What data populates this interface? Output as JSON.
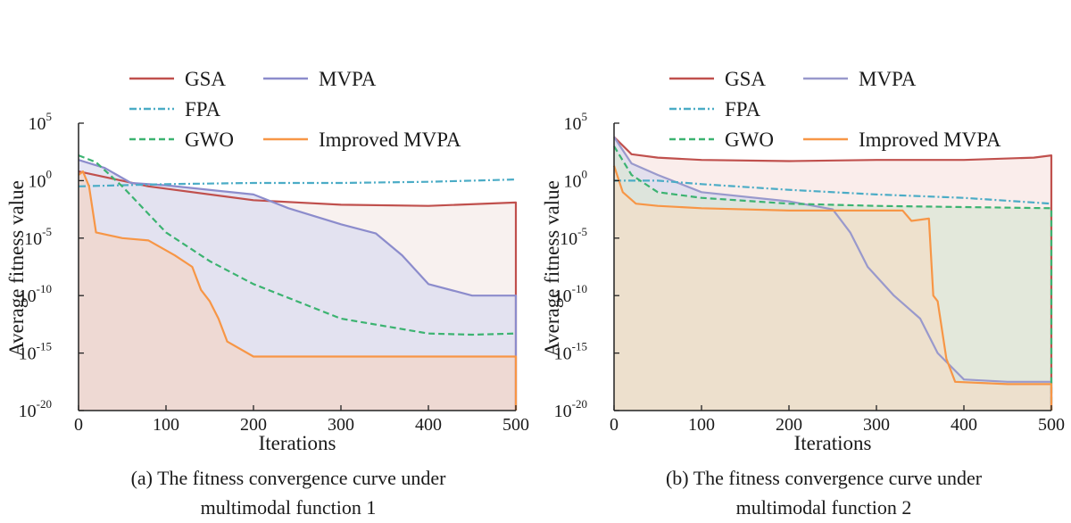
{
  "chart_data": [
    {
      "type": "line",
      "title": "(a) The fitness convergence curve under",
      "subtitle": "multimodal function 1",
      "xlabel": "Iterations",
      "ylabel": "Average fitness value",
      "yscale": "log",
      "xlim": [
        0,
        500
      ],
      "ylim_exponent": [
        -20,
        5
      ],
      "x_ticks": [
        "0",
        "100",
        "200",
        "300",
        "400",
        "500"
      ],
      "y_ticks": [
        {
          "base": "10",
          "exp": "5"
        },
        {
          "base": "10",
          "exp": "0"
        },
        {
          "base": "10",
          "exp": "-5"
        },
        {
          "base": "10",
          "exp": "-10"
        },
        {
          "base": "10",
          "exp": "-15"
        },
        {
          "base": "10",
          "exp": "-20"
        }
      ],
      "legend": [
        "GSA",
        "MVPA",
        "FPA",
        "GWO",
        "Improved MVPA"
      ],
      "legend_position": "top",
      "series": [
        {
          "name": "GSA",
          "color": "#c0504d",
          "style": "solid",
          "fill": "#f5ece9",
          "log10_points": [
            [
              0,
              0.8
            ],
            [
              80,
              -0.5
            ],
            [
              200,
              -1.7
            ],
            [
              300,
              -2.1
            ],
            [
              400,
              -2.2
            ],
            [
              500,
              -1.9
            ]
          ]
        },
        {
          "name": "MVPA",
          "color": "#8c8ccc",
          "style": "solid",
          "fill": "#dcdcf0",
          "log10_points": [
            [
              0,
              1.8
            ],
            [
              30,
              1.1
            ],
            [
              60,
              -0.2
            ],
            [
              100,
              -0.4
            ],
            [
              200,
              -1.2
            ],
            [
              240,
              -2.4
            ],
            [
              300,
              -3.8
            ],
            [
              340,
              -4.6
            ],
            [
              370,
              -6.5
            ],
            [
              400,
              -9.0
            ],
            [
              450,
              -10.0
            ],
            [
              500,
              -10.0
            ]
          ]
        },
        {
          "name": "FPA",
          "color": "#4bacc6",
          "style": "dashdot",
          "fill": "none",
          "log10_points": [
            [
              0,
              -0.5
            ],
            [
              100,
              -0.3
            ],
            [
              200,
              -0.2
            ],
            [
              300,
              -0.2
            ],
            [
              400,
              -0.1
            ],
            [
              500,
              0.1
            ]
          ]
        },
        {
          "name": "GWO",
          "color": "#3cb371",
          "style": "dashed",
          "fill": "none",
          "log10_points": [
            [
              0,
              2.2
            ],
            [
              20,
              1.6
            ],
            [
              50,
              -0.5
            ],
            [
              100,
              -4.5
            ],
            [
              150,
              -7.0
            ],
            [
              200,
              -9.0
            ],
            [
              300,
              -12.0
            ],
            [
              400,
              -13.3
            ],
            [
              450,
              -13.4
            ],
            [
              500,
              -13.3
            ]
          ]
        },
        {
          "name": "Improved MVPA",
          "color": "#f79646",
          "style": "solid",
          "fill": "#f1d6c9",
          "log10_points": [
            [
              0,
              0.5
            ],
            [
              5,
              0.8
            ],
            [
              12,
              -0.5
            ],
            [
              20,
              -4.5
            ],
            [
              50,
              -5.0
            ],
            [
              80,
              -5.2
            ],
            [
              110,
              -6.5
            ],
            [
              130,
              -7.5
            ],
            [
              140,
              -9.5
            ],
            [
              150,
              -10.5
            ],
            [
              160,
              -12.0
            ],
            [
              170,
              -14.0
            ],
            [
              200,
              -15.3
            ],
            [
              300,
              -15.3
            ],
            [
              400,
              -15.3
            ],
            [
              500,
              -15.3
            ]
          ]
        }
      ]
    },
    {
      "type": "line",
      "title": "(b) The fitness convergence curve under",
      "subtitle": "multimodal function 2",
      "xlabel": "Iterations",
      "ylabel": "Average fitness value",
      "yscale": "log",
      "xlim": [
        0,
        500
      ],
      "ylim_exponent": [
        -20,
        5
      ],
      "x_ticks": [
        "0",
        "100",
        "200",
        "300",
        "400",
        "500"
      ],
      "y_ticks": [
        {
          "base": "10",
          "exp": "5"
        },
        {
          "base": "10",
          "exp": "0"
        },
        {
          "base": "10",
          "exp": "-5"
        },
        {
          "base": "10",
          "exp": "-10"
        },
        {
          "base": "10",
          "exp": "-15"
        },
        {
          "base": "10",
          "exp": "-20"
        }
      ],
      "legend": [
        "GSA",
        "MVPA",
        "FPA",
        "GWO",
        "Improved MVPA"
      ],
      "legend_position": "top",
      "series": [
        {
          "name": "GSA",
          "color": "#c0504d",
          "style": "solid",
          "fill": "#f8e7e4",
          "log10_points": [
            [
              0,
              3.8
            ],
            [
              20,
              2.3
            ],
            [
              50,
              2.0
            ],
            [
              100,
              1.8
            ],
            [
              200,
              1.7
            ],
            [
              300,
              1.8
            ],
            [
              400,
              1.8
            ],
            [
              480,
              2.0
            ],
            [
              500,
              2.2
            ]
          ]
        },
        {
          "name": "MVPA",
          "color": "#9999cc",
          "style": "solid",
          "fill": "#d9d9ee",
          "log10_points": [
            [
              0,
              3.8
            ],
            [
              20,
              1.5
            ],
            [
              50,
              0.5
            ],
            [
              100,
              -1.0
            ],
            [
              200,
              -1.8
            ],
            [
              250,
              -2.5
            ],
            [
              270,
              -4.5
            ],
            [
              290,
              -7.5
            ],
            [
              320,
              -10.0
            ],
            [
              350,
              -12.0
            ],
            [
              370,
              -15.0
            ],
            [
              400,
              -17.3
            ],
            [
              450,
              -17.5
            ],
            [
              500,
              -17.5
            ]
          ]
        },
        {
          "name": "FPA",
          "color": "#4bacc6",
          "style": "dashdot",
          "fill": "none",
          "log10_points": [
            [
              0,
              0.0
            ],
            [
              50,
              0.0
            ],
            [
              100,
              -0.3
            ],
            [
              200,
              -0.8
            ],
            [
              300,
              -1.2
            ],
            [
              400,
              -1.5
            ],
            [
              500,
              -2.0
            ]
          ]
        },
        {
          "name": "GWO",
          "color": "#3cb371",
          "style": "dashed",
          "fill": "#dbe5d6",
          "log10_points": [
            [
              0,
              3.0
            ],
            [
              20,
              0.5
            ],
            [
              50,
              -1.0
            ],
            [
              100,
              -1.5
            ],
            [
              200,
              -2.0
            ],
            [
              300,
              -2.2
            ],
            [
              400,
              -2.3
            ],
            [
              500,
              -2.4
            ]
          ]
        },
        {
          "name": "Improved MVPA",
          "color": "#f79646",
          "style": "solid",
          "fill": "#f2dfc8",
          "log10_points": [
            [
              0,
              1.3
            ],
            [
              10,
              -1.0
            ],
            [
              25,
              -2.0
            ],
            [
              50,
              -2.2
            ],
            [
              100,
              -2.4
            ],
            [
              200,
              -2.6
            ],
            [
              330,
              -2.6
            ],
            [
              340,
              -3.5
            ],
            [
              360,
              -3.3
            ],
            [
              365,
              -10.0
            ],
            [
              370,
              -10.5
            ],
            [
              380,
              -15.5
            ],
            [
              390,
              -17.5
            ],
            [
              450,
              -17.7
            ],
            [
              500,
              -17.7
            ]
          ]
        }
      ]
    }
  ]
}
